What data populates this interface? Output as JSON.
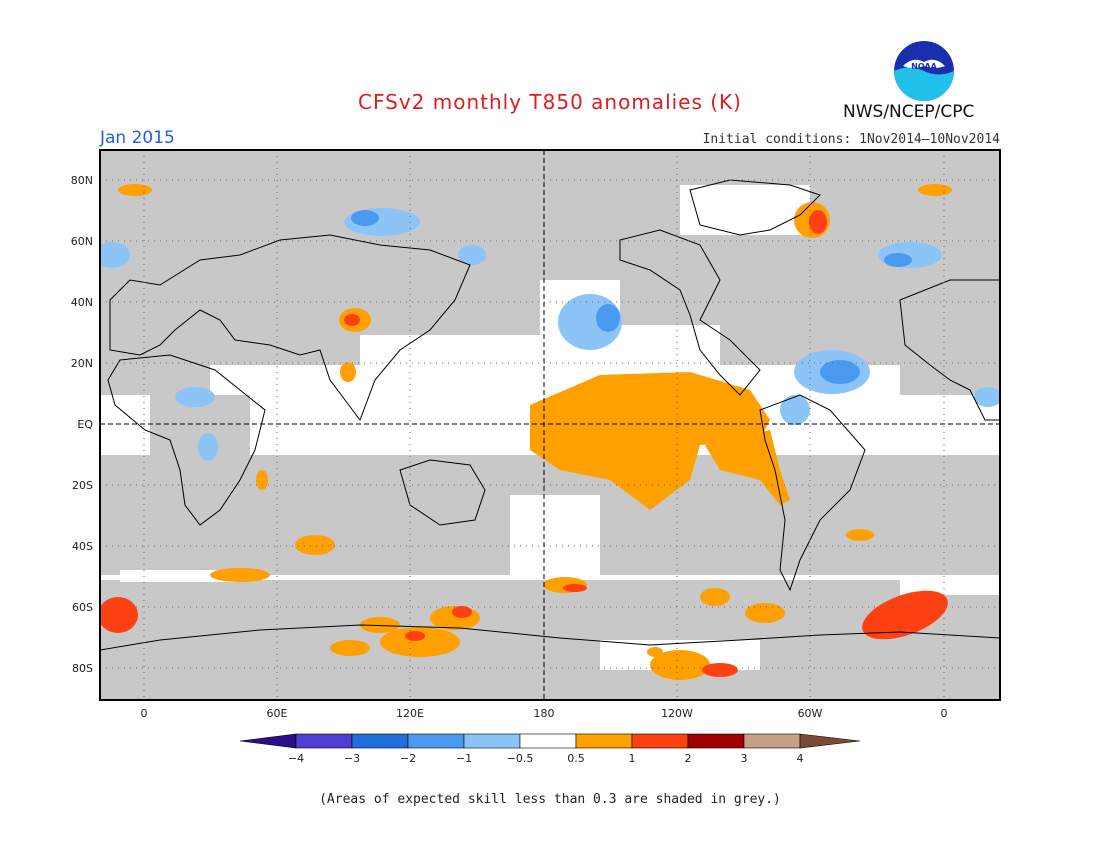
{
  "header": {
    "title": "CFSv2 monthly T850 anomalies (K)",
    "month": "Jan 2015",
    "initial_conditions": "Initial conditions: 1Nov2014—10Nov2014",
    "org": "NWS/NCEP/CPC",
    "logo_text": "NOAA"
  },
  "map": {
    "lat_labels": [
      "80N",
      "60N",
      "40N",
      "20N",
      "EQ",
      "20S",
      "40S",
      "60S",
      "80S"
    ],
    "lon_labels": [
      "0",
      "60E",
      "120E",
      "180",
      "120W",
      "60W",
      "0"
    ],
    "skill_mask_color": "#c8c8c8"
  },
  "colorbar": {
    "labels": [
      "−4",
      "−3",
      "−2",
      "−1",
      "−0.5",
      "0.5",
      "1",
      "2",
      "3",
      "4"
    ],
    "colors": [
      "#2a0e8c",
      "#5040d0",
      "#1f6fdc",
      "#4a9af0",
      "#8cc4f8",
      "#ffffff",
      "#ffa000",
      "#ff4010",
      "#a00000",
      "#c8a088",
      "#7a4a36"
    ]
  },
  "footnote": "(Areas of expected skill less than 0.3 are shaded in grey.)"
}
